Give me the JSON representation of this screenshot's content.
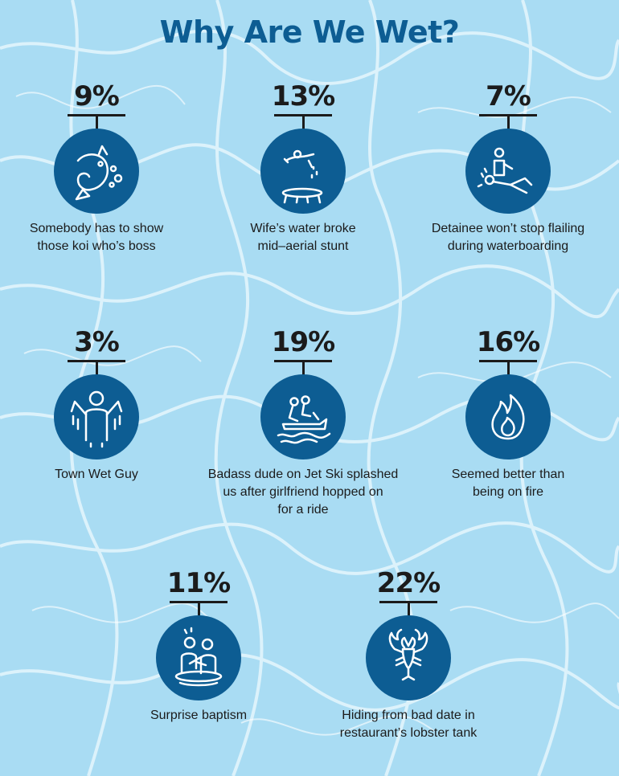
{
  "chart_data": {
    "type": "table",
    "title": "Why Are We Wet?",
    "items": [
      {
        "value": "9%",
        "label_lines": [
          "Somebody has to show",
          "those koi who’s boss"
        ],
        "icon": "fish-icon"
      },
      {
        "value": "13%",
        "label_lines": [
          "Wife’s water broke",
          "mid–aerial stunt"
        ],
        "icon": "trampoline-diver-icon"
      },
      {
        "value": "7%",
        "label_lines": [
          "Detainee won’t stop flailing",
          "during waterboarding"
        ],
        "icon": "waterboarding-icon"
      },
      {
        "value": "3%",
        "label_lines": [
          "Town Wet Guy"
        ],
        "icon": "dripping-person-icon"
      },
      {
        "value": "19%",
        "label_lines": [
          "Badass dude on Jet Ski splashed",
          "us after girlfriend hopped on",
          "for a ride"
        ],
        "icon": "jet-ski-icon"
      },
      {
        "value": "16%",
        "label_lines": [
          "Seemed better than",
          "being on fire"
        ],
        "icon": "flame-icon"
      },
      {
        "value": "11%",
        "label_lines": [
          "Surprise baptism"
        ],
        "icon": "baptism-icon"
      },
      {
        "value": "22%",
        "label_lines": [
          "Hiding from bad date in",
          "restaurant’s lobster tank"
        ],
        "icon": "lobster-icon"
      }
    ]
  },
  "colors": {
    "title": "#0d5d93",
    "circle": "#0d5d93",
    "text": "#1b1b1b",
    "water": "#a9dcf3"
  }
}
